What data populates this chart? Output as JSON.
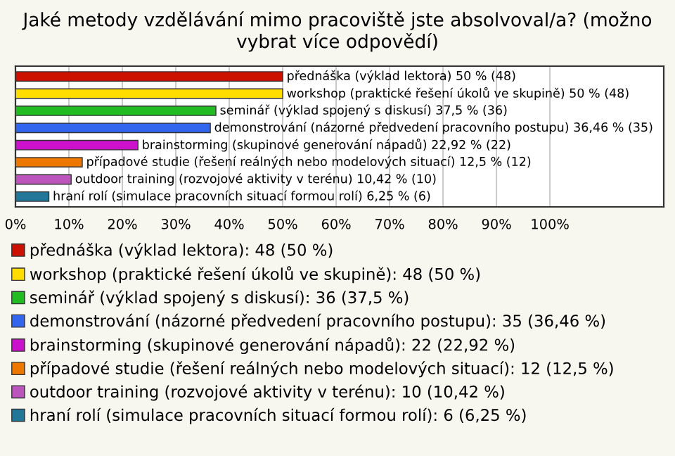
{
  "chart_data": {
    "type": "bar",
    "orientation": "horizontal",
    "title": "Jaké metody vzdělávání mimo pracoviště jste absolvoval/a? (možno vybrat více odpovědí)",
    "categories": [
      "přednáška (výklad lektora)",
      "workshop (praktické řešení úkolů ve skupině)",
      "seminář (výklad spojený s diskusí)",
      "demonstrování (názorné předvedení pracovního postupu)",
      "brainstorming (skupinové generování nápadů)",
      "případové studie (řešení reálných nebo modelových situací)",
      "outdoor training (rozvojové aktivity v terénu)",
      "hraní rolí (simulace pracovních situací formou rolí)"
    ],
    "series": [
      {
        "name": "přednáška (výklad lektora): 48 (50 %)",
        "color": "#cc1100",
        "values": [
          50,
          null,
          null,
          null,
          null,
          null,
          null,
          null
        ],
        "value_labels": [
          "50 % (48)",
          null,
          null,
          null,
          null,
          null,
          null,
          null
        ]
      },
      {
        "name": "workshop (praktické řešení úkolů ve skupině): 48 (50 %)",
        "color": "#ffdd00",
        "values": [
          null,
          50,
          null,
          null,
          null,
          null,
          null,
          null
        ],
        "value_labels": [
          null,
          "50 % (48)",
          null,
          null,
          null,
          null,
          null,
          null
        ]
      },
      {
        "name": "seminář (výklad spojený s diskusí): 36 (37,5 %)",
        "color": "#22bb22",
        "values": [
          null,
          null,
          37.5,
          null,
          null,
          null,
          null,
          null
        ],
        "value_labels": [
          null,
          null,
          "37,5 % (36)",
          null,
          null,
          null,
          null,
          null
        ]
      },
      {
        "name": "demonstrování (názorné předvedení pracovního postupu): 35 (36,46 %)",
        "color": "#3366ee",
        "values": [
          null,
          null,
          null,
          36.46,
          null,
          null,
          null,
          null
        ],
        "value_labels": [
          null,
          null,
          null,
          "36,46 % (35)",
          null,
          null,
          null,
          null
        ]
      },
      {
        "name": "brainstorming (skupinové generování nápadů): 22 (22,92 %)",
        "color": "#cc11cc",
        "values": [
          null,
          null,
          null,
          null,
          22.92,
          null,
          null,
          null
        ],
        "value_labels": [
          null,
          null,
          null,
          null,
          "22,92 % (22)",
          null,
          null,
          null
        ]
      },
      {
        "name": "případové studie (řešení reálných nebo modelových situací): 12 (12,5 %)",
        "color": "#ee7700",
        "values": [
          null,
          null,
          null,
          null,
          null,
          12.5,
          null,
          null
        ],
        "value_labels": [
          null,
          null,
          null,
          null,
          null,
          "12,5 % (12)",
          null,
          null
        ]
      },
      {
        "name": "outdoor training (rozvojové aktivity v terénu): 10 (10,42 %)",
        "color": "#bb55bb",
        "values": [
          null,
          null,
          null,
          null,
          null,
          null,
          10.42,
          null
        ],
        "value_labels": [
          null,
          null,
          null,
          null,
          null,
          null,
          "10,42 % (10)",
          null
        ]
      },
      {
        "name": "hraní rolí (simulace pracovních situací formou rolí): 6 (6,25 %)",
        "color": "#227799",
        "values": [
          null,
          null,
          null,
          null,
          null,
          null,
          null,
          6.25
        ],
        "value_labels": [
          null,
          null,
          null,
          null,
          null,
          null,
          null,
          "6,25 % (6)"
        ]
      }
    ],
    "xlim": [
      0,
      121.3
    ],
    "xticks": [
      {
        "value": 0,
        "label": "0%"
      },
      {
        "value": 10,
        "label": "10%"
      },
      {
        "value": 20,
        "label": "20%"
      },
      {
        "value": 30,
        "label": "30%"
      },
      {
        "value": 40,
        "label": "40%"
      },
      {
        "value": 50,
        "label": "50%"
      },
      {
        "value": 60,
        "label": "60%"
      },
      {
        "value": 70,
        "label": "70%"
      },
      {
        "value": 80,
        "label": "80%"
      },
      {
        "value": 90,
        "label": "90%"
      },
      {
        "value": 100,
        "label": "100%"
      }
    ],
    "grid": "x",
    "legend": "bottom"
  }
}
